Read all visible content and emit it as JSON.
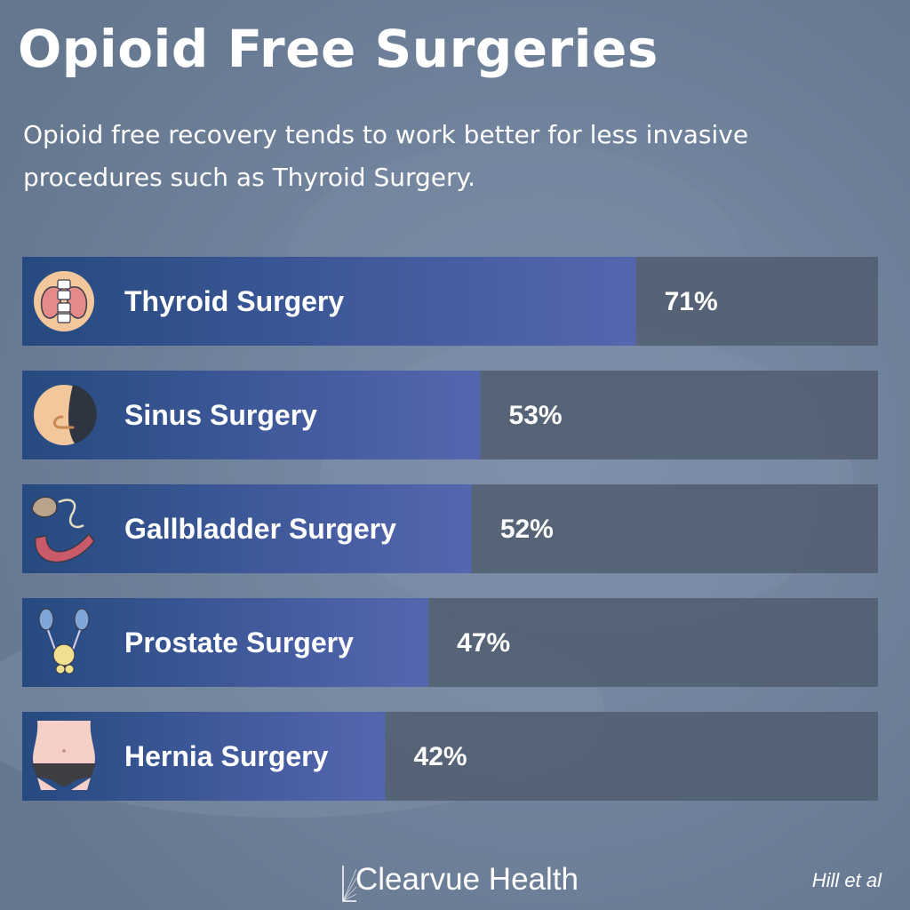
{
  "header": {
    "title": "Opioid Free Surgeries",
    "subtitle": "Opioid free recovery tends to work better for less invasive procedures such as Thyroid Surgery."
  },
  "chart_data": {
    "type": "bar",
    "orientation": "horizontal",
    "categories": [
      "Thyroid Surgery",
      "Sinus Surgery",
      "Gallbladder Surgery",
      "Prostate Surgery",
      "Hernia Surgery"
    ],
    "values": [
      71,
      53,
      52,
      47,
      42
    ],
    "value_labels": [
      "71%",
      "53%",
      "52%",
      "47%",
      "42%"
    ],
    "icons": [
      "thyroid-icon",
      "nose-icon",
      "gallbladder-icon",
      "prostate-icon",
      "abdomen-icon"
    ],
    "grid": false,
    "colors": {
      "bar_start": "#264a80",
      "bar_end": "#5566b0",
      "track": "#505d70",
      "text": "#ffffff",
      "background": "#6e809b"
    }
  },
  "footer": {
    "brand": "Clearvue Health",
    "source": "Hill et al"
  }
}
